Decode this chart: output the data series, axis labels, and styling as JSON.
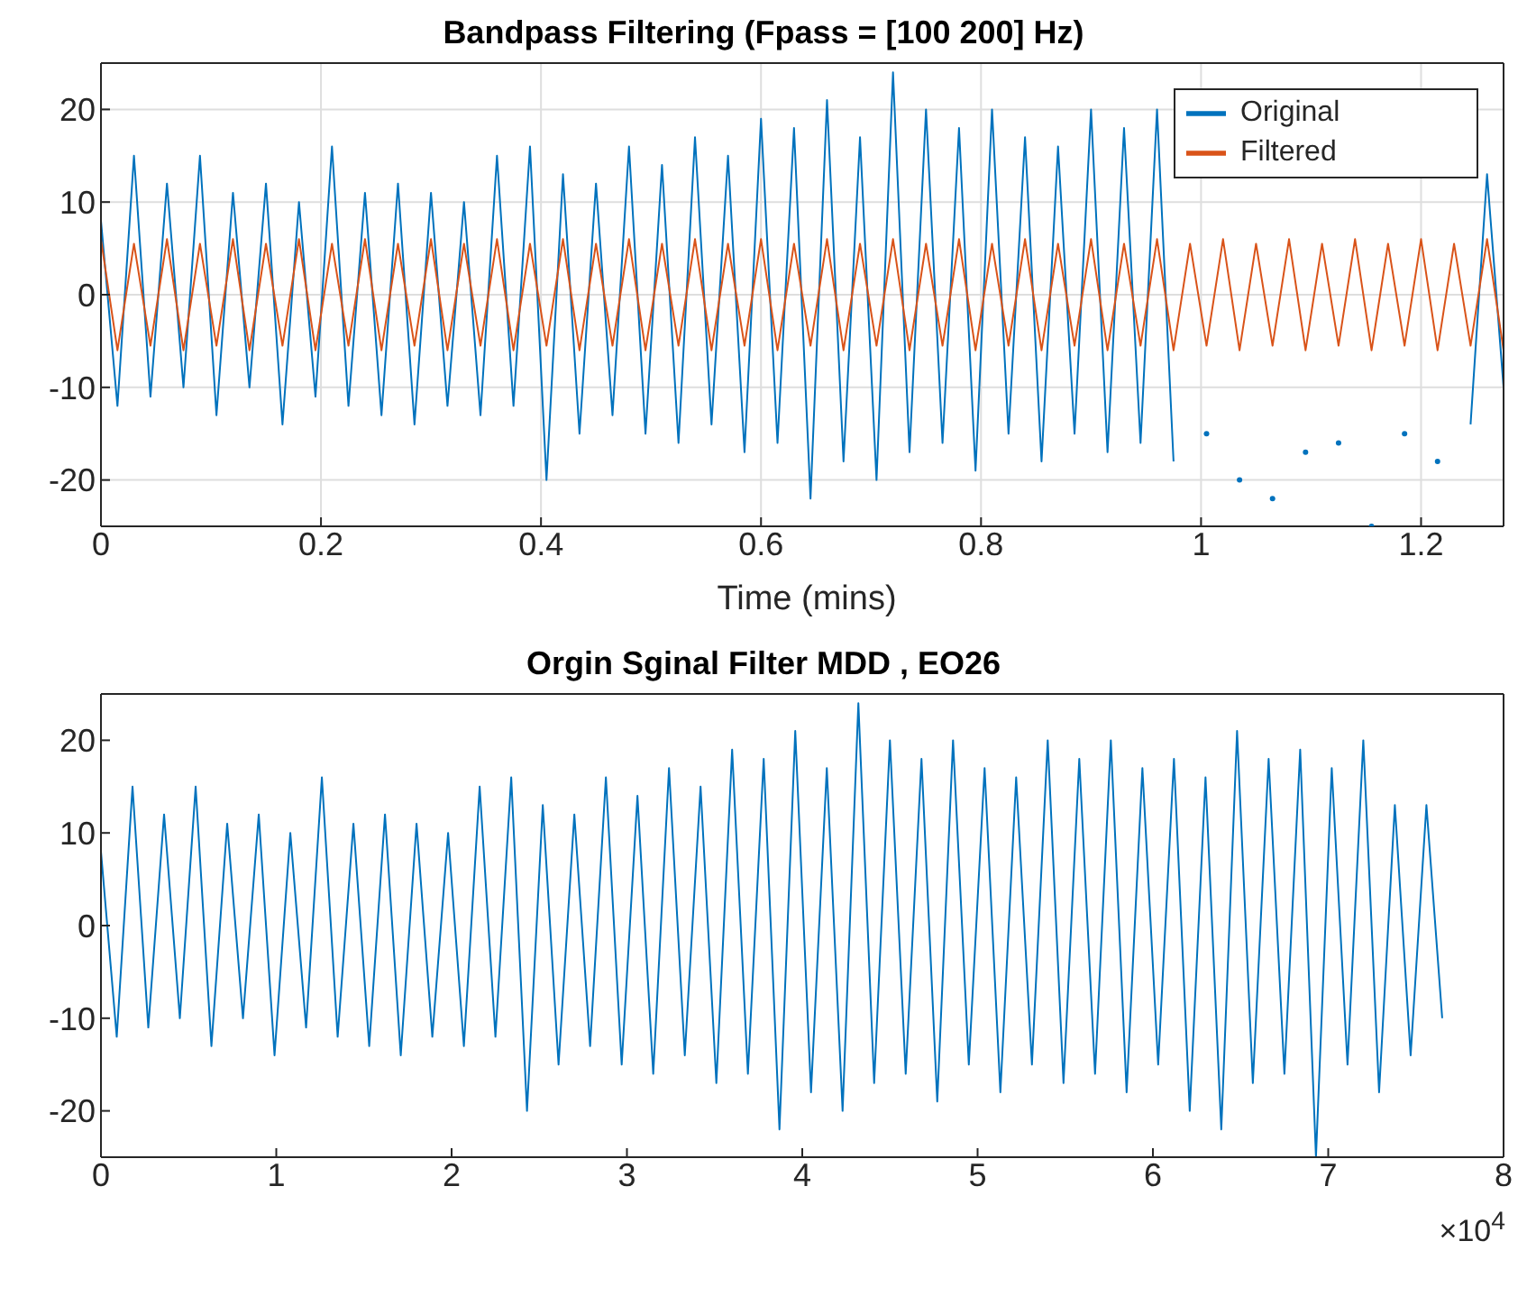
{
  "chart_data": [
    {
      "type": "line",
      "title": "Bandpass Filtering  (Fpass = [100 200] Hz)",
      "xlabel": "Time (mins)",
      "x": [
        0,
        0.015,
        0.03,
        0.045,
        0.06,
        0.075,
        0.09,
        0.105,
        0.12,
        0.135,
        0.15,
        0.165,
        0.18,
        0.195,
        0.21,
        0.225,
        0.24,
        0.255,
        0.27,
        0.285,
        0.3,
        0.315,
        0.33,
        0.345,
        0.36,
        0.375,
        0.39,
        0.405,
        0.42,
        0.435,
        0.45,
        0.465,
        0.48,
        0.495,
        0.51,
        0.525,
        0.54,
        0.555,
        0.57,
        0.585,
        0.6,
        0.615,
        0.63,
        0.645,
        0.66,
        0.675,
        0.69,
        0.705,
        0.72,
        0.735,
        0.75,
        0.765,
        0.78,
        0.795,
        0.81,
        0.825,
        0.84,
        0.855,
        0.87,
        0.885,
        0.9,
        0.915,
        0.93,
        0.945,
        0.96,
        0.975,
        0.99,
        1.005,
        1.02,
        1.035,
        1.05,
        1.065,
        1.08,
        1.095,
        1.11,
        1.125,
        1.14,
        1.155,
        1.17,
        1.185,
        1.2,
        1.215,
        1.23,
        1.245,
        1.26,
        1.275
      ],
      "series": [
        {
          "name": "Original",
          "color": "#0072bd",
          "values": [
            8,
            -12,
            15,
            -11,
            12,
            -10,
            15,
            -13,
            11,
            -10,
            12,
            -14,
            10,
            -11,
            16,
            -12,
            11,
            -13,
            12,
            -14,
            11,
            -12,
            10,
            -13,
            15,
            -12,
            16,
            -20,
            13,
            -15,
            12,
            -13,
            16,
            -15,
            14,
            -16,
            17,
            -14,
            15,
            -17,
            19,
            -16,
            18,
            -22,
            21,
            -18,
            17,
            -20,
            24,
            -17,
            20,
            -16,
            18,
            -19,
            20,
            -15,
            17,
            -18,
            16,
            -15,
            20,
            -17,
            18,
            -16,
            20,
            -18,
            null,
            -15,
            null,
            -20,
            null,
            -22,
            null,
            -17,
            null,
            -16,
            null,
            -25,
            null,
            -15,
            null,
            -18,
            null,
            -14,
            13,
            -10
          ]
        },
        {
          "name": "Filtered",
          "color": "#d95319",
          "values": [
            6,
            -6,
            5.5,
            -5.5,
            6,
            -6,
            5.5,
            -5.5,
            6,
            -6,
            5.5,
            -5.5,
            6,
            -6,
            5.5,
            -5.5,
            6,
            -6,
            5.5,
            -5.5,
            6,
            -6,
            5.5,
            -5.5,
            6,
            -6,
            5.5,
            -5.5,
            6,
            -6,
            5.5,
            -5.5,
            6,
            -6,
            5.5,
            -5.5,
            6,
            -6,
            5.5,
            -5.5,
            6,
            -6,
            5.5,
            -5.5,
            6,
            -6,
            5.5,
            -5.5,
            6,
            -6,
            5.5,
            -5.5,
            6,
            -6,
            5.5,
            -5.5,
            6,
            -6,
            5.5,
            -5.5,
            6,
            -6,
            5.5,
            -5.5,
            6,
            -6,
            5.5,
            -5.5,
            6,
            -6,
            5.5,
            -5.5,
            6,
            -6,
            5.5,
            -5.5,
            6,
            -6,
            5.5,
            -5.5,
            6,
            -6,
            5.5,
            -5.5,
            6,
            -6
          ]
        }
      ],
      "xlim": [
        0,
        1.275
      ],
      "xticks": [
        0,
        0.2,
        0.4,
        0.6,
        0.8,
        1,
        1.2
      ],
      "ylim": [
        -25,
        25
      ],
      "yticks": [
        -20,
        -10,
        0,
        10,
        20
      ],
      "grid": true,
      "legend": "top right"
    },
    {
      "type": "line",
      "title": "Orgin Sginal Filter  MDD , EO26",
      "annotations": [
        "×10$^{4}$"
      ],
      "x": [
        0,
        0.09,
        0.18,
        0.27,
        0.36,
        0.45,
        0.54,
        0.63,
        0.72,
        0.81,
        0.9,
        0.99,
        1.08,
        1.17,
        1.26,
        1.35,
        1.44,
        1.53,
        1.62,
        1.71,
        1.8,
        1.89,
        1.98,
        2.07,
        2.16,
        2.25,
        2.34,
        2.43,
        2.52,
        2.61,
        2.7,
        2.79,
        2.88,
        2.97,
        3.06,
        3.15,
        3.24,
        3.33,
        3.42,
        3.51,
        3.6,
        3.69,
        3.78,
        3.87,
        3.96,
        4.05,
        4.14,
        4.23,
        4.32,
        4.41,
        4.5,
        4.59,
        4.68,
        4.77,
        4.86,
        4.95,
        5.04,
        5.13,
        5.22,
        5.31,
        5.4,
        5.49,
        5.58,
        5.67,
        5.76,
        5.85,
        5.94,
        6.03,
        6.12,
        6.21,
        6.3,
        6.39,
        6.48,
        6.57,
        6.66,
        6.75,
        6.84,
        6.93,
        7.02,
        7.11,
        7.2,
        7.29,
        7.38,
        7.47,
        7.56,
        7.65
      ],
      "series": [
        {
          "color": "#0072bd",
          "values": [
            8,
            -12,
            15,
            -11,
            12,
            -10,
            15,
            -13,
            11,
            -10,
            12,
            -14,
            10,
            -11,
            16,
            -12,
            11,
            -13,
            12,
            -14,
            11,
            -12,
            10,
            -13,
            15,
            -12,
            16,
            -20,
            13,
            -15,
            12,
            -13,
            16,
            -15,
            14,
            -16,
            17,
            -14,
            15,
            -17,
            19,
            -16,
            18,
            -22,
            21,
            -18,
            17,
            -20,
            24,
            -17,
            20,
            -16,
            18,
            -19,
            20,
            -15,
            17,
            -18,
            16,
            -15,
            20,
            -17,
            18,
            -16,
            20,
            -18,
            17,
            -15,
            18,
            -20,
            16,
            -22,
            21,
            -17,
            18,
            -16,
            19,
            -25,
            17,
            -15,
            20,
            -18,
            13,
            -14,
            13,
            -10
          ]
        }
      ],
      "xlim": [
        0,
        8
      ],
      "xticks": [
        0,
        1,
        2,
        3,
        4,
        5,
        6,
        7,
        8
      ],
      "ylim": [
        -25,
        25
      ],
      "yticks": [
        -20,
        -10,
        0,
        10,
        20
      ]
    }
  ]
}
